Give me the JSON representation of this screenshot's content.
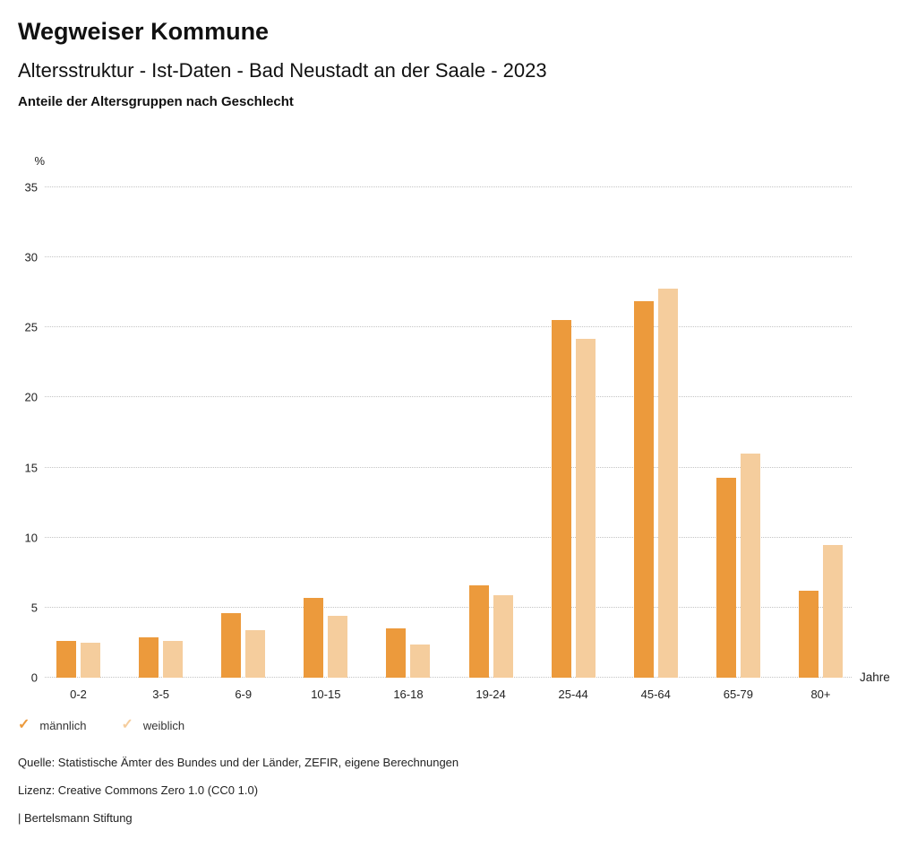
{
  "header": {
    "title": "Wegweiser Kommune",
    "subtitle": "Altersstruktur - Ist-Daten - Bad Neustadt an der Saale - 2023",
    "caption": "Anteile der Altersgruppen nach Geschlecht"
  },
  "chart_data": {
    "type": "bar",
    "title": "Anteile der Altersgruppen nach Geschlecht",
    "xlabel": "Jahre",
    "ylabel": "%",
    "ylim": [
      0,
      35
    ],
    "yticks": [
      0,
      5,
      10,
      15,
      20,
      25,
      30,
      35
    ],
    "grid": "horizontal-dotted",
    "gridline_color": "#c4c4c4",
    "legend_position": "bottom-left",
    "categories": [
      "0-2",
      "3-5",
      "6-9",
      "10-15",
      "16-18",
      "19-24",
      "25-44",
      "45-64",
      "65-79",
      "80+"
    ],
    "series": [
      {
        "name": "männlich",
        "color": "#EC9A3C",
        "values": [
          2.6,
          2.9,
          4.6,
          5.7,
          3.5,
          6.6,
          25.5,
          26.9,
          14.3,
          6.2
        ]
      },
      {
        "name": "weiblich",
        "color": "#F5CD9D",
        "values": [
          2.5,
          2.6,
          3.4,
          4.4,
          2.4,
          5.9,
          24.2,
          27.8,
          16.0,
          9.5
        ]
      }
    ]
  },
  "legend": {
    "check_glyph": "✓"
  },
  "footer": {
    "source": "Quelle: Statistische Ämter des Bundes und der Länder, ZEFIR, eigene Berechnungen",
    "license": "Lizenz: Creative Commons Zero 1.0 (CC0 1.0)",
    "attribution": "| Bertelsmann Stiftung"
  }
}
